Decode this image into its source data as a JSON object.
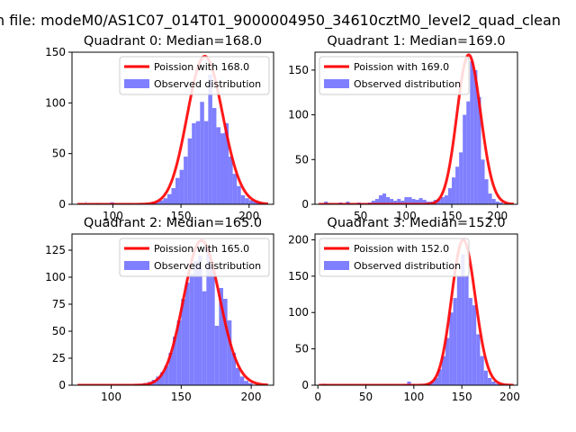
{
  "figure": {
    "suptitle": "n file: modeM0/AS1C07_014T01_9000004950_34610cztM0_level2_quad_clean"
  },
  "colors": {
    "hist": "#7f7fff",
    "poisson": "#ff0000",
    "background": "#ffffff"
  },
  "chart_data": [
    {
      "type": "bar",
      "title": "Quadrant 0: Median=168.0",
      "legend": [
        "Poission with 168.0",
        "Observed distribution"
      ],
      "legend_loc": "upper right",
      "xlim": [
        70,
        218
      ],
      "ylim": [
        0,
        150
      ],
      "xticks": [
        100,
        150,
        200
      ],
      "yticks": [
        0,
        50,
        100,
        150
      ],
      "lambda": 168.0,
      "poisson_scale": 146,
      "bins": [
        [
          80,
          0,
          3
        ],
        [
          88,
          3,
          1
        ],
        [
          98,
          3,
          2
        ],
        [
          110,
          3,
          1
        ],
        [
          120,
          3,
          1
        ],
        [
          125,
          3,
          1
        ],
        [
          128,
          3,
          2
        ],
        [
          131,
          3,
          3
        ],
        [
          134,
          3,
          4
        ],
        [
          137,
          3,
          6
        ],
        [
          140,
          3,
          10
        ],
        [
          143,
          3,
          16
        ],
        [
          146,
          3,
          26
        ],
        [
          149,
          3,
          34
        ],
        [
          152,
          3,
          47
        ],
        [
          155,
          3,
          65
        ],
        [
          158,
          3,
          80
        ],
        [
          161,
          3,
          82
        ],
        [
          164,
          3,
          101
        ],
        [
          167,
          3,
          82
        ],
        [
          170,
          3,
          128
        ],
        [
          173,
          3,
          95
        ],
        [
          176,
          3,
          76
        ],
        [
          179,
          3,
          70
        ],
        [
          182,
          3,
          80
        ],
        [
          185,
          3,
          47
        ],
        [
          188,
          3,
          30
        ],
        [
          191,
          3,
          18
        ],
        [
          194,
          3,
          9
        ],
        [
          197,
          3,
          6
        ],
        [
          200,
          3,
          4
        ],
        [
          203,
          3,
          3
        ],
        [
          206,
          3,
          2
        ],
        [
          209,
          3,
          1
        ]
      ]
    },
    {
      "type": "bar",
      "title": "Quadrant 1: Median=169.0",
      "legend": [
        "Poission with 169.0",
        "Observed distribution"
      ],
      "legend_loc": "upper left",
      "xlim": [
        0,
        222
      ],
      "ylim": [
        0,
        170
      ],
      "xticks": [
        50,
        100,
        150,
        200
      ],
      "yticks": [
        0,
        50,
        100,
        150
      ],
      "lambda": 169.0,
      "poisson_scale": 167,
      "bins": [
        [
          10,
          4,
          3
        ],
        [
          14,
          4,
          1
        ],
        [
          26,
          4,
          2
        ],
        [
          34,
          4,
          3
        ],
        [
          38,
          4,
          1
        ],
        [
          46,
          4,
          2
        ],
        [
          50,
          4,
          1
        ],
        [
          58,
          4,
          2
        ],
        [
          62,
          4,
          4
        ],
        [
          66,
          4,
          6
        ],
        [
          70,
          4,
          10
        ],
        [
          74,
          4,
          12
        ],
        [
          78,
          4,
          8
        ],
        [
          82,
          4,
          6
        ],
        [
          86,
          4,
          4
        ],
        [
          90,
          4,
          6
        ],
        [
          94,
          4,
          4
        ],
        [
          98,
          4,
          8
        ],
        [
          102,
          4,
          8
        ],
        [
          106,
          4,
          6
        ],
        [
          110,
          4,
          5
        ],
        [
          114,
          4,
          7
        ],
        [
          118,
          4,
          5
        ],
        [
          122,
          4,
          3
        ],
        [
          126,
          4,
          3
        ],
        [
          130,
          4,
          5
        ],
        [
          134,
          4,
          6
        ],
        [
          138,
          4,
          8
        ],
        [
          142,
          4,
          10
        ],
        [
          146,
          4,
          18
        ],
        [
          150,
          4,
          30
        ],
        [
          154,
          4,
          42
        ],
        [
          158,
          4,
          58
        ],
        [
          162,
          4,
          100
        ],
        [
          166,
          4,
          115
        ],
        [
          170,
          4,
          160
        ],
        [
          174,
          4,
          150
        ],
        [
          178,
          4,
          120
        ],
        [
          182,
          4,
          50
        ],
        [
          186,
          4,
          28
        ],
        [
          190,
          4,
          12
        ],
        [
          194,
          4,
          6
        ],
        [
          198,
          4,
          3
        ],
        [
          202,
          4,
          2
        ]
      ]
    },
    {
      "type": "bar",
      "title": "Quadrant 2: Median=165.0",
      "legend": [
        "Poission with 165.0",
        "Observed distribution"
      ],
      "legend_loc": "upper right",
      "xlim": [
        72,
        216
      ],
      "ylim": [
        0,
        140
      ],
      "xticks": [
        100,
        150,
        200
      ],
      "yticks": [
        0,
        25,
        50,
        75,
        100,
        125
      ],
      "lambda": 165.0,
      "poisson_scale": 134,
      "bins": [
        [
          117,
          3,
          1
        ],
        [
          120,
          3,
          1
        ],
        [
          123,
          3,
          2
        ],
        [
          126,
          3,
          3
        ],
        [
          129,
          3,
          5
        ],
        [
          132,
          3,
          8
        ],
        [
          135,
          3,
          12
        ],
        [
          138,
          3,
          18
        ],
        [
          141,
          3,
          30
        ],
        [
          144,
          3,
          45
        ],
        [
          147,
          3,
          60
        ],
        [
          150,
          3,
          80
        ],
        [
          153,
          3,
          95
        ],
        [
          156,
          3,
          103
        ],
        [
          159,
          3,
          115
        ],
        [
          162,
          3,
          120
        ],
        [
          165,
          3,
          87
        ],
        [
          168,
          3,
          128
        ],
        [
          171,
          3,
          110
        ],
        [
          174,
          3,
          55
        ],
        [
          177,
          3,
          90
        ],
        [
          180,
          3,
          80
        ],
        [
          183,
          3,
          60
        ],
        [
          186,
          3,
          30
        ],
        [
          189,
          3,
          16
        ],
        [
          192,
          3,
          8
        ],
        [
          195,
          3,
          4
        ],
        [
          198,
          3,
          2
        ]
      ]
    },
    {
      "type": "bar",
      "title": "Quadrant 3: Median=152.0",
      "legend": [
        "Poission with 152.0",
        "Observed distribution"
      ],
      "legend_loc": "upper left",
      "xlim": [
        -3,
        208
      ],
      "ylim": [
        0,
        208
      ],
      "xticks": [
        0,
        50,
        100,
        150,
        200
      ],
      "yticks": [
        0,
        50,
        100,
        150,
        200
      ],
      "lambda": 152.0,
      "poisson_scale": 200,
      "bins": [
        [
          5,
          4,
          2
        ],
        [
          9,
          4,
          1
        ],
        [
          17,
          4,
          1
        ],
        [
          29,
          4,
          1
        ],
        [
          49,
          4,
          1
        ],
        [
          69,
          4,
          1
        ],
        [
          89,
          4,
          1
        ],
        [
          93,
          4,
          5
        ],
        [
          97,
          4,
          1
        ],
        [
          109,
          4,
          1
        ],
        [
          113,
          4,
          2
        ],
        [
          117,
          4,
          5
        ],
        [
          121,
          4,
          10
        ],
        [
          125,
          4,
          22
        ],
        [
          129,
          4,
          40
        ],
        [
          133,
          4,
          65
        ],
        [
          137,
          4,
          100
        ],
        [
          141,
          4,
          120
        ],
        [
          145,
          4,
          150
        ],
        [
          149,
          4,
          180
        ],
        [
          153,
          4,
          150
        ],
        [
          157,
          4,
          120
        ],
        [
          161,
          4,
          110
        ],
        [
          165,
          4,
          70
        ],
        [
          169,
          4,
          40
        ],
        [
          173,
          4,
          20
        ],
        [
          177,
          4,
          10
        ],
        [
          181,
          4,
          5
        ],
        [
          185,
          4,
          2
        ]
      ]
    }
  ]
}
